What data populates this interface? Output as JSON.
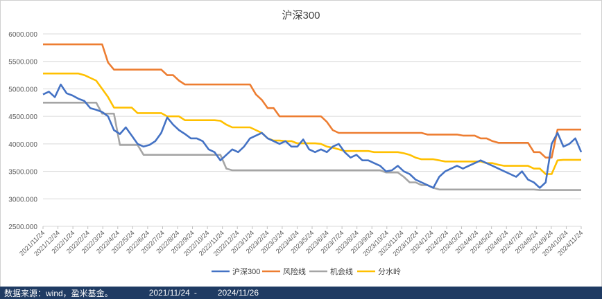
{
  "footer": {
    "source": "数据来源：wind，盈米基金。",
    "start_date": "2021/11/24",
    "separator": "-",
    "end_date": "2024/11/26"
  },
  "chart_data": {
    "type": "line",
    "title": "沪深300",
    "xlabel": "",
    "ylabel": "",
    "ylim": [
      2500,
      6000
    ],
    "y_ticks": [
      "2500.000",
      "3000.000",
      "3500.000",
      "4000.000",
      "4500.000",
      "5000.000",
      "5500.000",
      "6000.000"
    ],
    "y_tick_values": [
      2500,
      3000,
      3500,
      4000,
      4500,
      5000,
      5500,
      6000
    ],
    "x_ticks": [
      "2021/11/24",
      "2021/12/24",
      "2022/1/24",
      "2022/2/24",
      "2022/3/24",
      "2022/4/24",
      "2022/5/24",
      "2022/6/24",
      "2022/7/24",
      "2022/8/24",
      "2022/9/24",
      "2022/10/24",
      "2022/11/24",
      "2022/12/24",
      "2023/1/24",
      "2023/2/24",
      "2023/3/24",
      "2023/4/24",
      "2023/5/24",
      "2023/6/24",
      "2023/7/24",
      "2023/8/24",
      "2023/9/24",
      "2023/10/24",
      "2023/11/24",
      "2023/12/24",
      "2024/1/24",
      "2024/2/24",
      "2024/3/24",
      "2024/4/24",
      "2024/5/24",
      "2024/6/24",
      "2024/7/24",
      "2024/8/24",
      "2024/9/24",
      "2024/10/24",
      "2024/11/24"
    ],
    "grid": true,
    "legend_position": "bottom",
    "series": [
      {
        "name": "沪深300",
        "color": "#4472c4",
        "values": [
          4900,
          4950,
          4850,
          5080,
          4920,
          4880,
          4820,
          4780,
          4650,
          4620,
          4580,
          4500,
          4250,
          4180,
          4300,
          4150,
          4000,
          3950,
          3980,
          4050,
          4200,
          4480,
          4350,
          4250,
          4180,
          4100,
          4100,
          4050,
          3900,
          3850,
          3700,
          3800,
          3900,
          3850,
          3950,
          4100,
          4150,
          4200,
          4100,
          4050,
          4000,
          4050,
          3950,
          3950,
          4080,
          3900,
          3850,
          3900,
          3850,
          3950,
          4000,
          3850,
          3750,
          3800,
          3700,
          3700,
          3650,
          3600,
          3500,
          3520,
          3600,
          3500,
          3450,
          3350,
          3300,
          3250,
          3200,
          3400,
          3500,
          3550,
          3600,
          3550,
          3600,
          3650,
          3700,
          3650,
          3600,
          3550,
          3500,
          3450,
          3400,
          3500,
          3350,
          3300,
          3200,
          3300,
          4000,
          4200,
          3950,
          4000,
          4100,
          3850
        ]
      },
      {
        "name": "风险线",
        "color": "#ed7d31",
        "values": [
          5810,
          5810,
          5810,
          5810,
          5810,
          5810,
          5810,
          5810,
          5810,
          5810,
          5810,
          5480,
          5350,
          5350,
          5350,
          5350,
          5350,
          5350,
          5350,
          5350,
          5350,
          5250,
          5250,
          5150,
          5080,
          5080,
          5080,
          5080,
          5080,
          5080,
          5080,
          5080,
          5080,
          5080,
          5080,
          5080,
          4900,
          4800,
          4650,
          4650,
          4500,
          4500,
          4500,
          4500,
          4500,
          4500,
          4500,
          4500,
          4400,
          4250,
          4200,
          4200,
          4200,
          4200,
          4200,
          4200,
          4200,
          4200,
          4200,
          4200,
          4200,
          4200,
          4200,
          4200,
          4200,
          4170,
          4170,
          4170,
          4170,
          4170,
          4170,
          4150,
          4150,
          4150,
          4100,
          4100,
          4050,
          4020,
          4020,
          4020,
          4020,
          4020,
          4020,
          3850,
          3850,
          3750,
          3750,
          4260,
          4260,
          4260,
          4260,
          4260
        ]
      },
      {
        "name": "机会线",
        "color": "#a5a5a5",
        "values": [
          4750,
          4750,
          4750,
          4750,
          4750,
          4750,
          4750,
          4750,
          4750,
          4750,
          4550,
          4550,
          4550,
          3980,
          3980,
          3980,
          3980,
          3800,
          3800,
          3800,
          3800,
          3800,
          3800,
          3800,
          3800,
          3800,
          3800,
          3800,
          3800,
          3800,
          3800,
          3550,
          3520,
          3520,
          3520,
          3520,
          3520,
          3520,
          3520,
          3520,
          3520,
          3520,
          3520,
          3520,
          3520,
          3520,
          3520,
          3520,
          3520,
          3520,
          3520,
          3520,
          3520,
          3520,
          3520,
          3520,
          3520,
          3520,
          3480,
          3480,
          3480,
          3400,
          3300,
          3300,
          3250,
          3250,
          3200,
          3170,
          3170,
          3170,
          3170,
          3170,
          3170,
          3170,
          3170,
          3170,
          3170,
          3170,
          3170,
          3170,
          3170,
          3170,
          3170,
          3170,
          3160,
          3160,
          3160,
          3160,
          3160,
          3160,
          3160,
          3160
        ]
      },
      {
        "name": "分水岭",
        "color": "#ffc000",
        "values": [
          5280,
          5280,
          5280,
          5280,
          5280,
          5280,
          5280,
          5250,
          5200,
          5150,
          5000,
          4850,
          4660,
          4660,
          4660,
          4660,
          4560,
          4560,
          4560,
          4560,
          4560,
          4500,
          4500,
          4500,
          4430,
          4430,
          4430,
          4430,
          4430,
          4430,
          4420,
          4350,
          4300,
          4300,
          4300,
          4300,
          4250,
          4200,
          4100,
          4060,
          4060,
          4050,
          4050,
          4010,
          4010,
          4010,
          4010,
          4000,
          3950,
          3930,
          3900,
          3870,
          3870,
          3870,
          3870,
          3870,
          3850,
          3850,
          3850,
          3850,
          3850,
          3830,
          3800,
          3750,
          3720,
          3720,
          3720,
          3700,
          3680,
          3680,
          3680,
          3680,
          3680,
          3680,
          3680,
          3650,
          3650,
          3620,
          3600,
          3600,
          3600,
          3600,
          3600,
          3550,
          3550,
          3450,
          3450,
          3700,
          3710,
          3710,
          3710,
          3710
        ]
      }
    ]
  }
}
